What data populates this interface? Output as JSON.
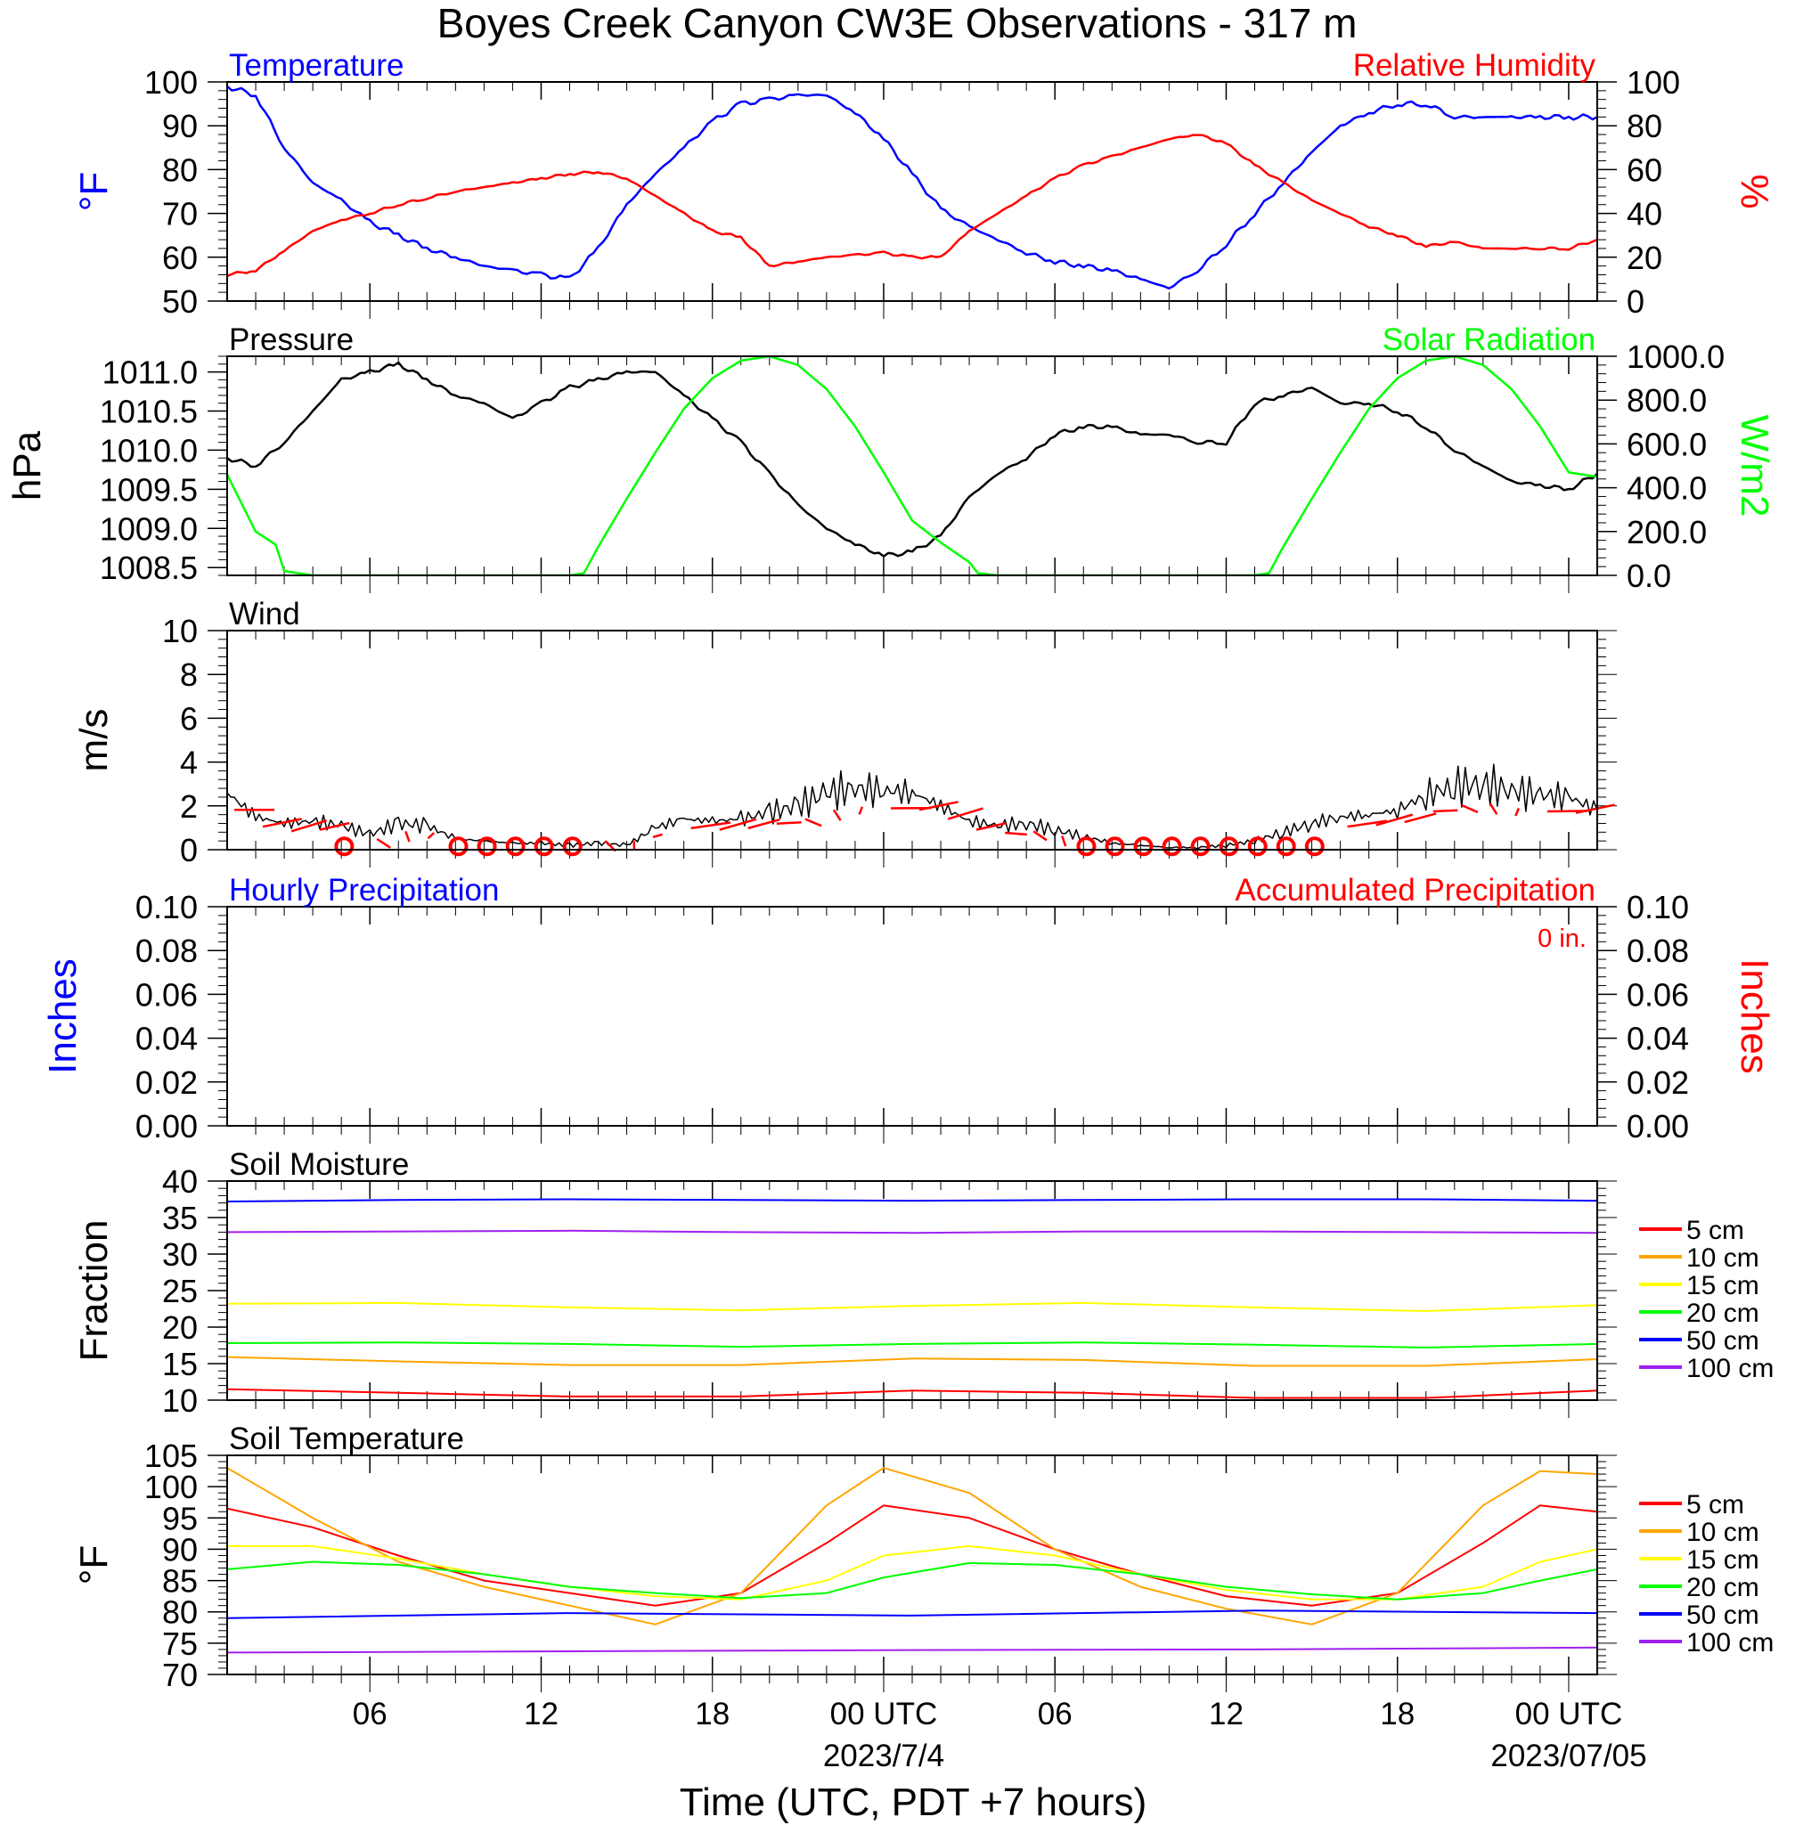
{
  "title": "Boyes Creek Canyon CW3E Observations - 317 m",
  "x_axis": {
    "label": "Time (UTC, PDT +7 hours)",
    "range_hours": [
      0,
      48
    ],
    "tick_labels": [
      {
        "hour": 5,
        "label": "06"
      },
      {
        "hour": 11,
        "label": "12"
      },
      {
        "hour": 17,
        "label": "18"
      },
      {
        "hour": 23,
        "label": "00 UTC",
        "date": "2023/7/4"
      },
      {
        "hour": 29,
        "label": "06"
      },
      {
        "hour": 35,
        "label": "12"
      },
      {
        "hour": 41,
        "label": "18"
      },
      {
        "hour": 47,
        "label": "00 UTC",
        "date": "2023/07/05"
      }
    ]
  },
  "legend_soil": {
    "items": [
      {
        "label": "5 cm",
        "color": "#ff0000"
      },
      {
        "label": "10 cm",
        "color": "#ffa500"
      },
      {
        "label": "15 cm",
        "color": "#ffff00"
      },
      {
        "label": "20 cm",
        "color": "#00ff00"
      },
      {
        "label": "50 cm",
        "color": "#0000ff"
      },
      {
        "label": "100 cm",
        "color": "#a020f0"
      }
    ]
  },
  "chart_data": [
    {
      "panel": "temperature_humidity",
      "type": "line",
      "left_title": "Temperature",
      "right_title": "Relative Humidity",
      "ylabel_left": "°F",
      "ylabel_right": "%",
      "ylim_left": [
        50,
        100
      ],
      "ylim_right": [
        0,
        100
      ],
      "yticks_left": [
        50,
        60,
        70,
        80,
        90,
        100
      ],
      "yticks_right": [
        0,
        20,
        40,
        60,
        80,
        100
      ],
      "series": [
        {
          "axis": "left",
          "color": "#0000ff",
          "x": [
            0,
            1,
            2,
            3,
            4,
            5,
            6,
            7,
            8,
            9,
            10,
            11,
            12,
            13,
            14,
            15,
            16,
            17,
            18,
            19,
            20,
            21,
            22,
            23,
            24,
            25,
            26,
            27,
            28,
            29,
            30,
            31,
            32,
            33,
            34,
            35,
            36,
            37,
            38,
            39,
            40,
            41,
            42,
            43,
            44,
            45,
            46,
            47,
            48
          ],
          "y": [
            99,
            97,
            85,
            77,
            73,
            68,
            65,
            62,
            60,
            58,
            57,
            56,
            55,
            62,
            72,
            79,
            85,
            91,
            95,
            96,
            97,
            97,
            93,
            87,
            79,
            71,
            67,
            64,
            61,
            59,
            58,
            57,
            55,
            53,
            57,
            63,
            70,
            77,
            84,
            90,
            93,
            95,
            95,
            92,
            92,
            92,
            92,
            92,
            92
          ]
        },
        {
          "axis": "right",
          "color": "#ff0000",
          "x": [
            0,
            1,
            2,
            3,
            4,
            5,
            6,
            7,
            8,
            9,
            10,
            11,
            12,
            13,
            14,
            15,
            16,
            17,
            18,
            19,
            20,
            21,
            22,
            23,
            24,
            25,
            26,
            27,
            28,
            29,
            30,
            31,
            32,
            33,
            34,
            35,
            36,
            37,
            38,
            39,
            40,
            41,
            42,
            43,
            44,
            45,
            46,
            47,
            48
          ],
          "y": [
            12,
            14,
            23,
            32,
            37,
            40,
            44,
            47,
            50,
            52,
            54,
            56,
            58,
            59,
            56,
            48,
            40,
            32,
            29,
            16,
            18,
            20,
            21,
            22,
            20,
            20,
            32,
            40,
            48,
            56,
            62,
            66,
            70,
            74,
            76,
            72,
            62,
            54,
            46,
            40,
            34,
            30,
            25,
            27,
            24,
            24,
            24,
            24,
            28
          ]
        }
      ]
    },
    {
      "panel": "pressure_solar",
      "type": "line",
      "left_title": "Pressure",
      "right_title": "Solar Radiation",
      "ylabel_left": "hPa",
      "ylabel_right": "W/m2",
      "ylim_left": [
        1008.4,
        1011.2
      ],
      "ylim_right": [
        0,
        1000
      ],
      "yticks_left": [
        1008.5,
        1009.0,
        1009.5,
        1010.0,
        1010.5,
        1011.0
      ],
      "yticks_right": [
        0,
        200,
        400,
        600,
        800,
        1000
      ],
      "series": [
        {
          "axis": "left",
          "color": "#000000",
          "x": [
            0,
            1,
            2,
            3,
            4,
            5,
            6,
            7,
            8,
            9,
            10,
            11,
            12,
            13,
            14,
            15,
            16,
            17,
            18,
            19,
            20,
            21,
            22,
            23,
            24,
            25,
            26,
            27,
            28,
            29,
            30,
            31,
            32,
            33,
            34,
            35,
            36,
            37,
            38,
            39,
            40,
            41,
            42,
            43,
            44,
            45,
            46,
            47,
            48
          ],
          "y": [
            1009.9,
            1009.8,
            1010.1,
            1010.5,
            1010.9,
            1011.0,
            1011.1,
            1010.9,
            1010.7,
            1010.6,
            1010.4,
            1010.6,
            1010.8,
            1010.9,
            1011.0,
            1011.0,
            1010.7,
            1010.4,
            1010.1,
            1009.7,
            1009.3,
            1009.0,
            1008.8,
            1008.65,
            1008.7,
            1008.9,
            1009.4,
            1009.7,
            1009.9,
            1010.2,
            1010.3,
            1010.3,
            1010.2,
            1010.2,
            1010.1,
            1010.1,
            1010.6,
            1010.7,
            1010.8,
            1010.6,
            1010.6,
            1010.5,
            1010.3,
            1010.0,
            1009.8,
            1009.6,
            1009.55,
            1009.5,
            1009.7
          ]
        },
        {
          "axis": "right",
          "color": "#00ff00",
          "x": [
            0,
            1,
            1.7,
            2,
            3,
            4,
            5,
            6,
            7,
            8,
            9,
            10,
            11,
            12,
            12.5,
            13,
            14,
            15,
            16,
            17,
            18,
            19,
            20,
            21,
            22,
            23,
            24,
            25,
            26,
            26.3,
            27,
            28,
            29,
            30,
            31,
            32,
            33,
            34,
            35,
            36,
            36.5,
            37,
            38,
            39,
            40,
            41,
            42,
            43,
            44,
            45,
            46,
            47,
            48
          ],
          "y": [
            460,
            200,
            140,
            20,
            0,
            0,
            0,
            0,
            0,
            0,
            0,
            0,
            0,
            0,
            10,
            130,
            350,
            560,
            760,
            900,
            980,
            1000,
            960,
            850,
            680,
            470,
            250,
            150,
            60,
            10,
            0,
            0,
            0,
            0,
            0,
            0,
            0,
            0,
            0,
            0,
            10,
            130,
            350,
            560,
            760,
            900,
            980,
            1000,
            960,
            850,
            680,
            470,
            450
          ]
        }
      ]
    },
    {
      "panel": "wind",
      "type": "line",
      "left_title": "Wind",
      "ylabel_left": "m/s",
      "ylim_left": [
        0,
        10
      ],
      "yticks_left": [
        0,
        2,
        4,
        6,
        8,
        10
      ],
      "series": [
        {
          "axis": "left",
          "color": "#000000",
          "x": [
            0,
            1,
            2,
            3,
            4,
            5,
            6,
            7,
            8,
            9,
            10,
            11,
            12,
            13,
            14,
            15,
            16,
            17,
            18,
            19,
            20,
            21,
            22,
            23,
            24,
            25,
            26,
            27,
            28,
            29,
            30,
            31,
            32,
            33,
            34,
            35,
            36,
            37,
            38,
            39,
            40,
            41,
            42,
            43,
            44,
            45,
            46,
            47,
            48
          ],
          "y": [
            2.6,
            1.5,
            1.2,
            1.3,
            1.1,
            0.7,
            1.2,
            1.1,
            0.5,
            0.4,
            0.3,
            0.3,
            0.2,
            0.3,
            0.2,
            1.0,
            1.4,
            1.3,
            1.4,
            1.7,
            2.0,
            2.6,
            2.8,
            2.7,
            2.6,
            2.0,
            1.3,
            1.1,
            1.2,
            0.9,
            0.6,
            0.3,
            0.2,
            0.1,
            0.1,
            0.2,
            0.4,
            0.8,
            1.2,
            1.5,
            1.6,
            1.8,
            2.5,
            2.9,
            3.0,
            2.7,
            2.5,
            2.4,
            1.8
          ]
        }
      ],
      "wind_barbs": {
        "color": "#ff0000",
        "calm_hours": [
          4,
          8,
          9,
          10,
          11,
          12,
          30,
          31,
          32,
          33,
          34,
          35,
          36,
          37,
          38
        ]
      }
    },
    {
      "panel": "precipitation",
      "type": "line",
      "left_title": "Hourly Precipitation",
      "right_title": "Accumulated Precipitation",
      "annotation": "0 in.",
      "ylabel_left": "Inches",
      "ylabel_right": "Inches",
      "ylim_left": [
        0,
        0.1
      ],
      "ylim_right": [
        0,
        0.1
      ],
      "yticks_left": [
        0.0,
        0.02,
        0.04,
        0.06,
        0.08,
        0.1
      ],
      "yticks_right": [
        0.0,
        0.02,
        0.04,
        0.06,
        0.08,
        0.1
      ],
      "series": [
        {
          "axis": "left",
          "color": "#0000ff",
          "x": [
            0,
            48
          ],
          "y": [
            0,
            0
          ]
        },
        {
          "axis": "right",
          "color": "#ff0000",
          "x": [
            0,
            48
          ],
          "y": [
            0,
            0
          ]
        }
      ]
    },
    {
      "panel": "soil_moisture",
      "type": "line",
      "left_title": "Soil Moisture",
      "ylabel_left": "Fraction",
      "ylim_left": [
        10,
        40
      ],
      "yticks_left": [
        10,
        15,
        20,
        25,
        30,
        35,
        40
      ],
      "series": [
        {
          "name": "5 cm",
          "color": "#ff0000",
          "x": [
            0,
            6,
            12,
            18,
            24,
            30,
            36,
            42,
            48
          ],
          "y": [
            11.5,
            11.0,
            10.5,
            10.5,
            11.3,
            11.0,
            10.3,
            10.3,
            11.3
          ]
        },
        {
          "name": "10 cm",
          "color": "#ffa500",
          "x": [
            0,
            6,
            12,
            18,
            24,
            30,
            36,
            42,
            48
          ],
          "y": [
            15.9,
            15.3,
            14.8,
            14.8,
            15.7,
            15.5,
            14.7,
            14.7,
            15.6
          ]
        },
        {
          "name": "15 cm",
          "color": "#ffff00",
          "x": [
            0,
            6,
            12,
            18,
            24,
            30,
            36,
            42,
            48
          ],
          "y": [
            23.2,
            23.3,
            22.7,
            22.3,
            22.9,
            23.3,
            22.7,
            22.2,
            23.0
          ]
        },
        {
          "name": "20 cm",
          "color": "#00ff00",
          "x": [
            0,
            6,
            12,
            18,
            24,
            30,
            36,
            42,
            48
          ],
          "y": [
            17.8,
            17.9,
            17.7,
            17.3,
            17.7,
            17.9,
            17.6,
            17.2,
            17.7
          ]
        },
        {
          "name": "50 cm",
          "color": "#0000ff",
          "x": [
            0,
            6,
            12,
            18,
            24,
            30,
            36,
            42,
            48
          ],
          "y": [
            37.2,
            37.4,
            37.5,
            37.4,
            37.3,
            37.4,
            37.5,
            37.5,
            37.3
          ]
        },
        {
          "name": "100 cm",
          "color": "#a020f0",
          "x": [
            0,
            6,
            12,
            18,
            24,
            30,
            36,
            42,
            48
          ],
          "y": [
            33.0,
            33.1,
            33.2,
            33.0,
            32.9,
            33.1,
            33.1,
            33.0,
            32.9
          ]
        }
      ]
    },
    {
      "panel": "soil_temperature",
      "type": "line",
      "left_title": "Soil Temperature",
      "ylabel_left": "°F",
      "ylim_left": [
        70,
        105
      ],
      "yticks_left": [
        70,
        75,
        80,
        85,
        90,
        95,
        100,
        105
      ],
      "series": [
        {
          "name": "5 cm",
          "color": "#ff0000",
          "x": [
            0,
            3,
            6,
            9,
            12,
            15,
            18,
            21,
            23,
            26,
            29,
            32,
            35,
            38,
            41,
            44,
            46,
            48
          ],
          "y": [
            96.5,
            93.5,
            89,
            85,
            83,
            81,
            83,
            91,
            97,
            95,
            90,
            86,
            82.5,
            81,
            83,
            91,
            97,
            96
          ]
        },
        {
          "name": "10 cm",
          "color": "#ffa500",
          "x": [
            0,
            3,
            6,
            9,
            12,
            15,
            18,
            21,
            23,
            26,
            29,
            32,
            35,
            38,
            41,
            44,
            46,
            48
          ],
          "y": [
            103,
            95,
            88,
            84,
            81,
            78,
            83,
            97,
            103,
            99,
            90,
            84,
            80.5,
            78,
            83,
            97,
            102.5,
            102
          ]
        },
        {
          "name": "15 cm",
          "color": "#ffff00",
          "x": [
            0,
            3,
            6,
            9,
            12,
            15,
            18,
            21,
            23,
            26,
            29,
            32,
            35,
            38,
            41,
            44,
            46,
            48
          ],
          "y": [
            90.5,
            90.5,
            88.5,
            86,
            84,
            82.5,
            82,
            85,
            89,
            90.5,
            89,
            86,
            83.5,
            82,
            82,
            84,
            88,
            90
          ]
        },
        {
          "name": "20 cm",
          "color": "#00ff00",
          "x": [
            0,
            3,
            6,
            9,
            12,
            15,
            18,
            21,
            23,
            26,
            29,
            32,
            35,
            38,
            41,
            44,
            46,
            48
          ],
          "y": [
            86.8,
            88,
            87.5,
            86,
            84,
            83,
            82.2,
            83,
            85.5,
            87.8,
            87.5,
            86,
            84,
            82.8,
            82,
            83,
            85,
            86.8
          ]
        },
        {
          "name": "50 cm",
          "color": "#0000ff",
          "x": [
            0,
            12,
            24,
            36,
            48
          ],
          "y": [
            79,
            79.8,
            79.4,
            80.2,
            79.8
          ]
        },
        {
          "name": "100 cm",
          "color": "#a020f0",
          "x": [
            0,
            12,
            24,
            36,
            48
          ],
          "y": [
            73.5,
            73.7,
            73.9,
            74.0,
            74.3
          ]
        }
      ]
    }
  ]
}
